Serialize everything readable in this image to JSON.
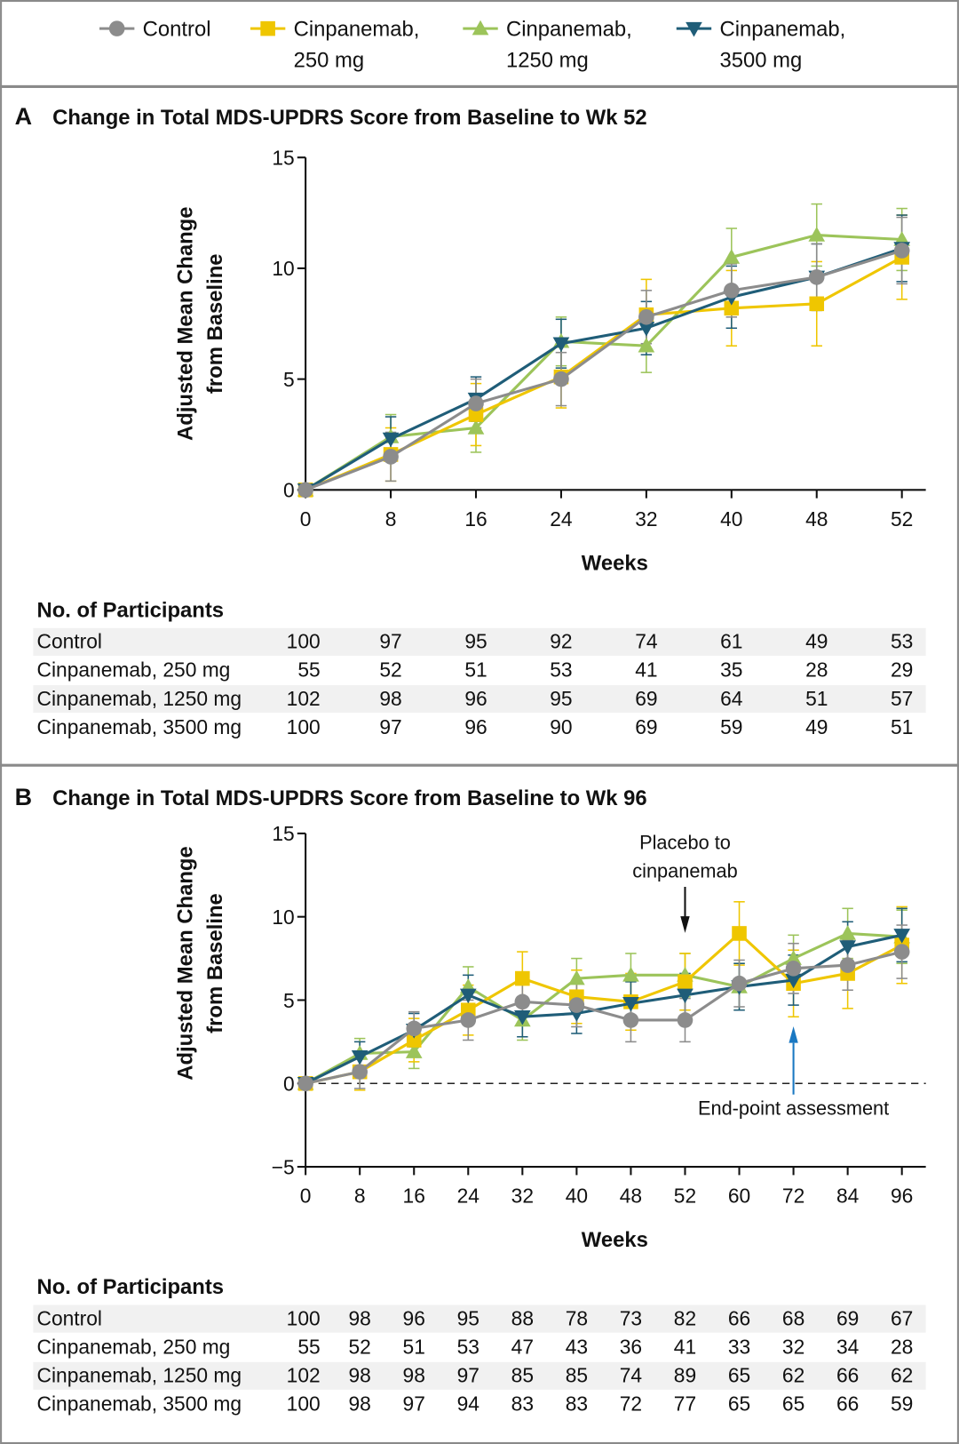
{
  "legend": [
    {
      "line1": "Control",
      "line2": "",
      "color": "#8c8c8c",
      "marker": "circle"
    },
    {
      "line1": "Cinpanemab,",
      "line2": "250 mg",
      "color": "#efc600",
      "marker": "square"
    },
    {
      "line1": "Cinpanemab,",
      "line2": "1250 mg",
      "color": "#9cc45a",
      "marker": "triangle-up"
    },
    {
      "line1": "Cinpanemab,",
      "line2": "3500 mg",
      "color": "#1f5d78",
      "marker": "triangle-down"
    }
  ],
  "chart_data": [
    {
      "panel": "A",
      "type": "line",
      "title": "Change in Total MDS-UPDRS Score from Baseline to Wk 52",
      "xlabel": "Weeks",
      "ylabel": [
        "Adjusted Mean Change",
        "from Baseline"
      ],
      "x": [
        "0",
        "8",
        "16",
        "24",
        "32",
        "40",
        "48",
        "52"
      ],
      "yticks": [
        "0",
        "5",
        "10",
        "15"
      ],
      "ylim": [
        0,
        15
      ],
      "series": [
        {
          "name": "Control",
          "values": [
            0,
            1.5,
            3.9,
            5.0,
            7.8,
            9.0,
            9.6,
            10.8
          ],
          "err": [
            0,
            1.1,
            1.1,
            1.2,
            1.2,
            1.2,
            1.5,
            1.5
          ]
        },
        {
          "name": "Cinpanemab, 250 mg",
          "values": [
            0,
            1.6,
            3.4,
            5.1,
            7.9,
            8.2,
            8.4,
            10.5
          ],
          "err": [
            0,
            1.2,
            1.4,
            1.4,
            1.6,
            1.7,
            1.9,
            1.9
          ]
        },
        {
          "name": "Cinpanemab, 1250 mg",
          "values": [
            0,
            2.4,
            2.8,
            6.7,
            6.5,
            10.5,
            11.5,
            11.3
          ],
          "err": [
            0,
            1.0,
            1.1,
            1.1,
            1.2,
            1.3,
            1.4,
            1.4
          ]
        },
        {
          "name": "Cinpanemab, 3500 mg",
          "values": [
            0,
            2.3,
            4.1,
            6.6,
            7.3,
            8.7,
            9.6,
            10.9
          ],
          "err": [
            0,
            1.0,
            1.0,
            1.1,
            1.2,
            1.4,
            1.5,
            1.5
          ]
        }
      ],
      "participants": {
        "header": "No. of Participants",
        "rows": [
          {
            "label": "Control",
            "values": [
              "100",
              "97",
              "95",
              "92",
              "74",
              "61",
              "49",
              "53"
            ]
          },
          {
            "label": "Cinpanemab, 250 mg",
            "values": [
              "55",
              "52",
              "51",
              "53",
              "41",
              "35",
              "28",
              "29"
            ]
          },
          {
            "label": "Cinpanemab, 1250 mg",
            "values": [
              "102",
              "98",
              "96",
              "95",
              "69",
              "64",
              "51",
              "57"
            ]
          },
          {
            "label": "Cinpanemab, 3500 mg",
            "values": [
              "100",
              "97",
              "96",
              "90",
              "69",
              "59",
              "49",
              "51"
            ]
          }
        ]
      }
    },
    {
      "panel": "B",
      "type": "line",
      "title": "Change in Total MDS-UPDRS Score from Baseline to Wk 96",
      "xlabel": "Weeks",
      "ylabel": [
        "Adjusted Mean Change",
        "from Baseline"
      ],
      "x": [
        "0",
        "8",
        "16",
        "24",
        "32",
        "40",
        "48",
        "52",
        "60",
        "72",
        "84",
        "96"
      ],
      "yticks": [
        "−5",
        "0",
        "5",
        "10",
        "15"
      ],
      "ylim": [
        -5,
        15
      ],
      "reference_line": 0,
      "annotations": [
        {
          "text": [
            "Placebo to",
            "cinpanemab"
          ],
          "at_week": "52",
          "arrow": "down",
          "color": "#111111"
        },
        {
          "text": [
            "End-point assessment"
          ],
          "at_week": "72",
          "arrow": "up",
          "color": "#1a78c2"
        }
      ],
      "series": [
        {
          "name": "Control",
          "values": [
            0,
            0.7,
            3.3,
            3.8,
            4.9,
            4.7,
            3.8,
            3.8,
            6.0,
            6.9,
            7.1,
            7.9
          ],
          "err": [
            0,
            1.0,
            1.0,
            1.2,
            1.3,
            1.3,
            1.3,
            1.3,
            1.4,
            1.5,
            1.5,
            1.6
          ]
        },
        {
          "name": "Cinpanemab, 250 mg",
          "values": [
            0,
            0.7,
            2.6,
            4.4,
            6.3,
            5.2,
            4.9,
            6.1,
            9.0,
            6.0,
            6.6,
            8.3
          ],
          "err": [
            0,
            1.1,
            1.3,
            1.5,
            1.6,
            1.6,
            1.7,
            1.7,
            1.9,
            2.0,
            2.1,
            2.3
          ]
        },
        {
          "name": "Cinpanemab, 1250 mg",
          "values": [
            0,
            1.8,
            1.9,
            5.8,
            3.8,
            6.3,
            6.5,
            6.5,
            5.8,
            7.5,
            9.0,
            8.8
          ],
          "err": [
            0,
            0.9,
            1.0,
            1.2,
            1.2,
            1.2,
            1.3,
            1.3,
            1.4,
            1.4,
            1.5,
            1.6
          ]
        },
        {
          "name": "Cinpanemab, 3500 mg",
          "values": [
            0,
            1.6,
            3.2,
            5.3,
            4.0,
            4.2,
            4.8,
            5.3,
            5.8,
            6.2,
            8.2,
            8.9
          ],
          "err": [
            0,
            0.9,
            1.0,
            1.2,
            1.2,
            1.2,
            1.3,
            1.3,
            1.4,
            1.5,
            1.5,
            1.6
          ]
        }
      ],
      "participants": {
        "header": "No. of Participants",
        "rows": [
          {
            "label": "Control",
            "values": [
              "100",
              "98",
              "96",
              "95",
              "88",
              "78",
              "73",
              "82",
              "66",
              "68",
              "69",
              "67"
            ]
          },
          {
            "label": "Cinpanemab, 250 mg",
            "values": [
              "55",
              "52",
              "51",
              "53",
              "47",
              "43",
              "36",
              "41",
              "33",
              "32",
              "34",
              "28"
            ]
          },
          {
            "label": "Cinpanemab, 1250 mg",
            "values": [
              "102",
              "98",
              "98",
              "97",
              "85",
              "85",
              "74",
              "89",
              "65",
              "62",
              "66",
              "62"
            ]
          },
          {
            "label": "Cinpanemab, 3500 mg",
            "values": [
              "100",
              "98",
              "97",
              "94",
              "83",
              "83",
              "72",
              "77",
              "65",
              "65",
              "66",
              "59"
            ]
          }
        ]
      }
    }
  ]
}
